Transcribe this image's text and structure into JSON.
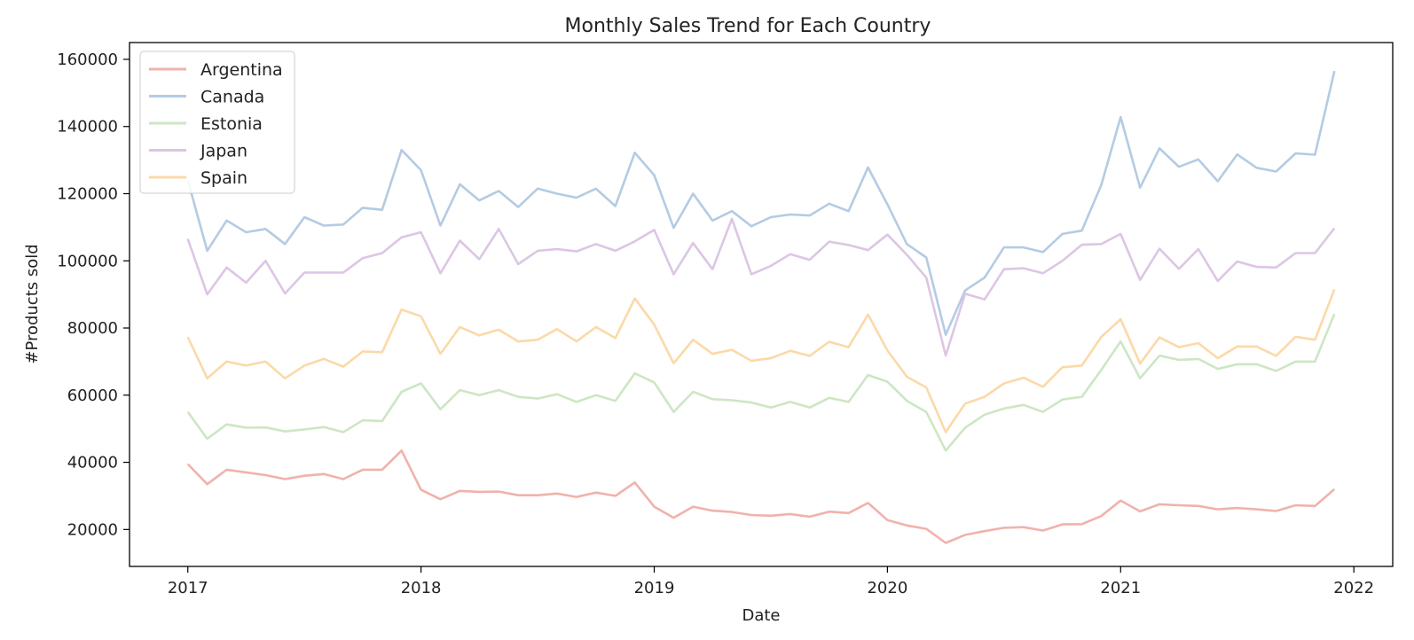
{
  "chart_data": {
    "type": "line",
    "title": "Monthly Sales Trend for Each Country",
    "xlabel": "Date",
    "ylabel": "#Products sold",
    "x_start": "2017-01",
    "x_ticks": [
      "2017",
      "2018",
      "2019",
      "2020",
      "2021",
      "2022"
    ],
    "y_ticks": [
      20000,
      40000,
      60000,
      80000,
      100000,
      120000,
      140000,
      160000
    ],
    "xlim": [
      "2016-10",
      "2022-03"
    ],
    "ylim": [
      9000,
      165000
    ],
    "grid": false,
    "legend_position": "top-left",
    "series": [
      {
        "name": "Argentina",
        "color": "#f0b2ab",
        "values": [
          39500,
          33500,
          37800,
          37000,
          36200,
          35000,
          36000,
          36500,
          35000,
          37800,
          37800,
          43500,
          31800,
          29000,
          31500,
          31200,
          31300,
          30200,
          30200,
          30700,
          29700,
          31000,
          30000,
          34000,
          26800,
          23500,
          26800,
          25600,
          25200,
          24300,
          24100,
          24600,
          23800,
          25300,
          24900,
          27900,
          22800,
          21200,
          20200,
          16000,
          18400,
          19500,
          20500,
          20700,
          19700,
          21500,
          21600,
          24000,
          28600,
          25400,
          27500,
          27200,
          27000,
          26000,
          26400,
          26000,
          25500,
          27200,
          27000,
          32000
        ]
      },
      {
        "name": "Canada",
        "color": "#b4cbe3",
        "values": [
          124000,
          103000,
          112000,
          108500,
          109500,
          105000,
          113000,
          110500,
          110800,
          115800,
          115200,
          133000,
          127000,
          110500,
          122800,
          118000,
          120800,
          116000,
          121500,
          120000,
          118800,
          121500,
          116300,
          132200,
          125500,
          109800,
          120000,
          112000,
          114800,
          110300,
          113000,
          113800,
          113500,
          117000,
          114800,
          127800,
          116800,
          105000,
          101000,
          78000,
          91200,
          95000,
          104000,
          104000,
          102600,
          108000,
          109000,
          122500,
          142800,
          121800,
          133500,
          128000,
          130200,
          123700,
          131700,
          127700,
          126600,
          132000,
          131600,
          156500
        ]
      },
      {
        "name": "Estonia",
        "color": "#cde6c4",
        "values": [
          55000,
          47000,
          51300,
          50300,
          50400,
          49200,
          49800,
          50500,
          49000,
          52500,
          52300,
          61000,
          63500,
          55800,
          61500,
          60000,
          61500,
          59500,
          59000,
          60300,
          58000,
          60000,
          58300,
          66500,
          63800,
          55000,
          61000,
          58800,
          58500,
          57800,
          56300,
          58000,
          56300,
          59200,
          58000,
          66000,
          64000,
          58300,
          55000,
          43500,
          50300,
          54200,
          56000,
          57100,
          55000,
          58700,
          59500,
          67500,
          76000,
          65000,
          71800,
          70500,
          70800,
          67800,
          69200,
          69200,
          67200,
          70000,
          70000,
          84200
        ]
      },
      {
        "name": "Japan",
        "color": "#dcc6e4",
        "values": [
          106500,
          90000,
          98000,
          93500,
          100000,
          90300,
          96500,
          96500,
          96500,
          100800,
          102300,
          107000,
          108500,
          96300,
          106000,
          100500,
          109500,
          99000,
          103000,
          103500,
          102800,
          105000,
          103000,
          105800,
          109200,
          96000,
          105300,
          97500,
          112500,
          96000,
          98500,
          102000,
          100300,
          105700,
          104700,
          103200,
          107800,
          101800,
          95000,
          71800,
          90200,
          88500,
          97500,
          97800,
          96300,
          100000,
          104800,
          105000,
          108000,
          94300,
          103600,
          97600,
          103500,
          94000,
          99800,
          98200,
          98000,
          102300,
          102300,
          109700
        ]
      },
      {
        "name": "Spain",
        "color": "#fbd9a8",
        "values": [
          77300,
          65000,
          70000,
          68800,
          70000,
          65000,
          68800,
          70800,
          68500,
          73000,
          72800,
          85500,
          83500,
          72300,
          80300,
          77800,
          79500,
          76000,
          76500,
          79700,
          76000,
          80300,
          77000,
          88800,
          81000,
          69500,
          76500,
          72300,
          73500,
          70200,
          71000,
          73200,
          71700,
          75900,
          74300,
          84000,
          73300,
          65500,
          62300,
          49000,
          57500,
          59500,
          63500,
          65200,
          62500,
          68300,
          68800,
          77300,
          82600,
          69400,
          77200,
          74300,
          75500,
          71000,
          74500,
          74500,
          71700,
          77400,
          76500,
          91500
        ]
      }
    ]
  }
}
